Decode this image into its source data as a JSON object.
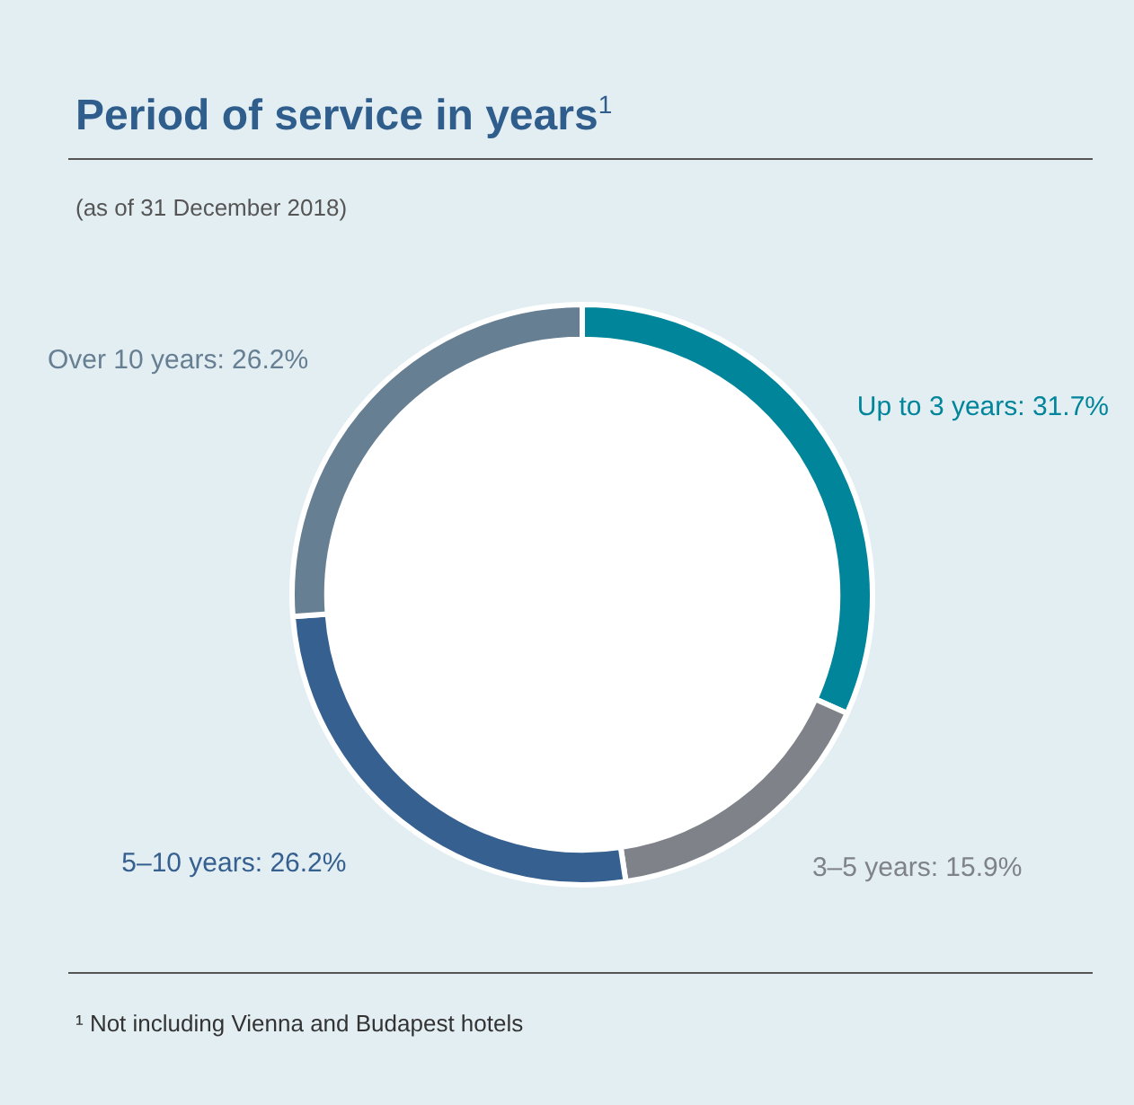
{
  "chart_data": {
    "type": "donut",
    "title": "Period of service in years$^{1}$",
    "subtitle": "(as of 31 December 2018)",
    "categories": [
      "Up to 3 years",
      "3–5 years",
      "5–10 years",
      "Over 10 years"
    ],
    "values": [
      31.7,
      15.9,
      26.2,
      26.2
    ],
    "value_labels": [
      "31.7%",
      "15.9%",
      "26.2%",
      "26.2%"
    ],
    "colors": [
      "#00859b",
      "#7f8389",
      "#35608f",
      "#677f92"
    ],
    "legend": false,
    "annotations": [
      "¹ Not including Vienna and Budapest hotels"
    ]
  }
}
